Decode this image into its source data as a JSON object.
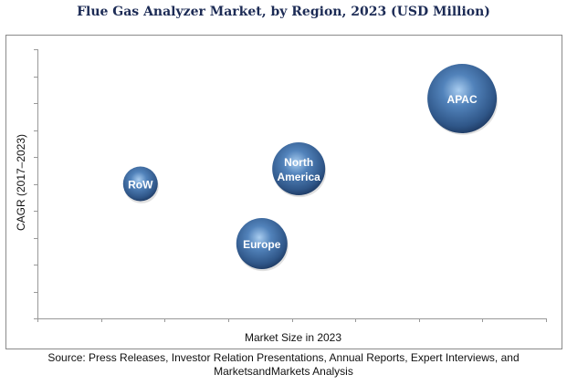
{
  "chart_data": {
    "type": "scatter",
    "subtype": "bubble",
    "title": "Flue Gas Analyzer Market, by Region, 2023 (USD Million)",
    "xlabel": "Market Size in 2023",
    "ylabel": "CAGR (2017–2023)",
    "xlim": [
      0,
      8
    ],
    "ylim": [
      0,
      10
    ],
    "x_ticks": 8,
    "y_ticks": 10,
    "grid": false,
    "points": [
      {
        "label": "RoW",
        "lines": [
          "RoW"
        ],
        "x": 1.62,
        "y": 5.0,
        "size": 19
      },
      {
        "label": "Europe",
        "lines": [
          "Europe"
        ],
        "x": 3.53,
        "y": 2.78,
        "size": 28
      },
      {
        "label": "North America",
        "lines": [
          "North",
          "America"
        ],
        "x": 4.11,
        "y": 5.56,
        "size": 29
      },
      {
        "label": "APAC",
        "lines": [
          "APAC"
        ],
        "x": 6.68,
        "y": 8.17,
        "size": 38
      }
    ],
    "bubble_color": "#3f6a9c"
  },
  "source": "Source: Press Releases, Investor Relation Presentations, Annual Reports, Expert Interviews, and MarketsandMarkets Analysis"
}
